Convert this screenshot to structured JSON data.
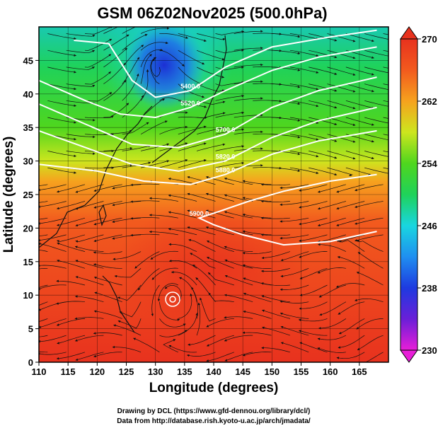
{
  "chart_data": {
    "type": "heatmap",
    "title": "GSM 06Z02Nov2025 (500.0hPa)",
    "xlabel": "Longitude (degrees)",
    "ylabel": "Latitude  (degrees)",
    "xlim": [
      110,
      170
    ],
    "ylim": [
      0,
      50
    ],
    "x_ticks": [
      110,
      115,
      120,
      125,
      130,
      135,
      140,
      145,
      150,
      155,
      160,
      165
    ],
    "y_ticks": [
      0,
      5,
      10,
      15,
      20,
      25,
      30,
      35,
      40,
      45
    ],
    "colorbar": {
      "min": 230,
      "max": 270,
      "ticks": [
        230,
        238,
        246,
        254,
        262,
        270
      ],
      "colors": [
        "#e81ed8",
        "#6a1fd8",
        "#1e3ae0",
        "#1f8ff0",
        "#19d6e0",
        "#1fd25a",
        "#4fd61e",
        "#cde61e",
        "#f6a21e",
        "#f25a1e",
        "#e8321e"
      ]
    },
    "contours": [
      {
        "label": "5400.0",
        "points": [
          [
            116,
            48
          ],
          [
            122,
            47.5
          ],
          [
            126,
            42
          ],
          [
            130,
            39.5
          ],
          [
            136,
            40.5
          ],
          [
            142,
            44
          ],
          [
            150,
            47
          ],
          [
            160,
            48.5
          ],
          [
            168,
            49.5
          ]
        ]
      },
      {
        "label": "5520.0",
        "points": [
          [
            110,
            42
          ],
          [
            118,
            39
          ],
          [
            124,
            37
          ],
          [
            130,
            36.5
          ],
          [
            136,
            38
          ],
          [
            142,
            40.5
          ],
          [
            150,
            43.5
          ],
          [
            158,
            45.5
          ],
          [
            168,
            47
          ]
        ]
      },
      {
        "label": "5700.0",
        "points": [
          [
            110,
            38.5
          ],
          [
            118,
            35.5
          ],
          [
            126,
            32.5
          ],
          [
            134,
            32
          ],
          [
            142,
            34
          ],
          [
            150,
            38
          ],
          [
            158,
            40.5
          ],
          [
            168,
            42.5
          ]
        ]
      },
      {
        "label": "5820.0",
        "points": [
          [
            110,
            34.5
          ],
          [
            118,
            32
          ],
          [
            126,
            29.5
          ],
          [
            134,
            28.5
          ],
          [
            142,
            30
          ],
          [
            150,
            33.5
          ],
          [
            158,
            36
          ],
          [
            168,
            38
          ]
        ]
      },
      {
        "label": "5880.0",
        "points": [
          [
            110,
            29.5
          ],
          [
            120,
            28.5
          ],
          [
            128,
            27
          ],
          [
            136,
            26.5
          ],
          [
            142,
            28
          ],
          [
            150,
            31
          ],
          [
            158,
            33
          ],
          [
            168,
            34.5
          ]
        ]
      },
      {
        "label": "5900.0",
        "points": [
          [
            168,
            28
          ],
          [
            160,
            27
          ],
          [
            152,
            25.5
          ],
          [
            146,
            24
          ],
          [
            141,
            22.5
          ],
          [
            137.5,
            21.5
          ],
          [
            140,
            20.5
          ],
          [
            145,
            19
          ],
          [
            152,
            17.5
          ],
          [
            160,
            18
          ],
          [
            168,
            19.5
          ]
        ]
      }
    ],
    "annotations": {
      "credit_line1": "Drawing by DCL (https://www.gfd-dennou.org/library/dcl/)",
      "credit_line2": "Data from http://database.rish.kyoto-u.ac.jp/arch/jmadata/"
    }
  }
}
